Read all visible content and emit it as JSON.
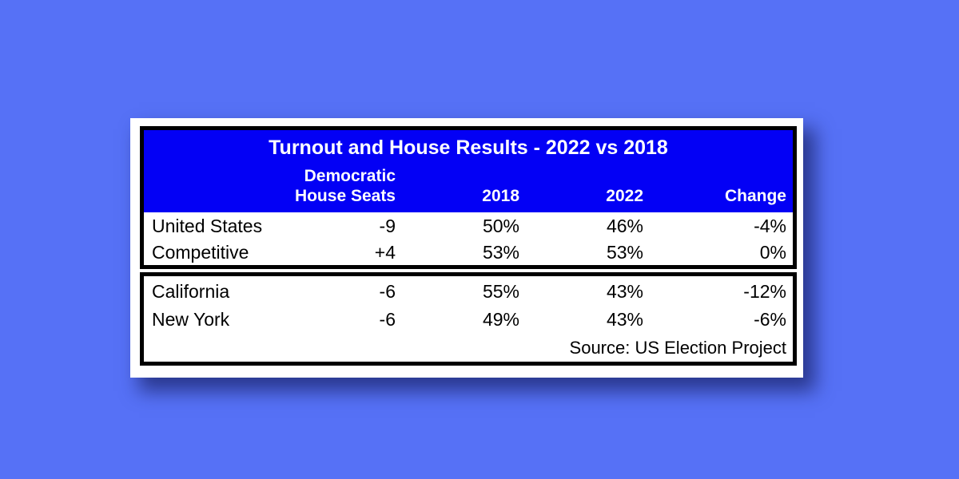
{
  "colors": {
    "page_bg": "#5671f6",
    "card_bg": "#ffffff",
    "header_bg": "#0300f5",
    "header_text": "#ffffff",
    "body_text": "#000000",
    "border_color": "#000000"
  },
  "table": {
    "title": "Turnout and House Results - 2022 vs 2018",
    "header": {
      "seats_line1": "Democratic",
      "seats_line2": "House Seats",
      "col_2018": "2018",
      "col_2022": "2022",
      "col_change": "Change"
    },
    "national_rows": [
      {
        "label": "United States",
        "seats": "-9",
        "y2018": "50%",
        "y2022": "46%",
        "change": "-4%"
      },
      {
        "label": "Competitive",
        "seats": "+4",
        "y2018": "53%",
        "y2022": "53%",
        "change": "0%"
      }
    ],
    "state_rows": [
      {
        "label": "California",
        "seats": "-6",
        "y2018": "55%",
        "y2022": "43%",
        "change": "-12%"
      },
      {
        "label": "New York",
        "seats": "-6",
        "y2018": "49%",
        "y2022": "43%",
        "change": "-6%"
      }
    ],
    "source": "Source: US Election Project"
  },
  "chart_data": {
    "type": "table",
    "title": "Turnout and House Results - 2022 vs 2018",
    "columns": [
      "",
      "Democratic House Seats",
      "2018",
      "2022",
      "Change"
    ],
    "rows": [
      [
        "United States",
        "-9",
        "50%",
        "46%",
        "-4%"
      ],
      [
        "Competitive",
        "+4",
        "53%",
        "53%",
        "0%"
      ],
      [
        "California",
        "-6",
        "55%",
        "43%",
        "-12%"
      ],
      [
        "New York",
        "-6",
        "49%",
        "43%",
        "-6%"
      ]
    ],
    "row_groups": [
      {
        "name": "national",
        "rows": [
          "United States",
          "Competitive"
        ]
      },
      {
        "name": "states",
        "rows": [
          "California",
          "New York"
        ]
      }
    ],
    "source": "Source: US Election Project",
    "layout": {
      "header_fill": "#0300f5",
      "header_text_color": "#ffffff",
      "numeric_alignment": "right"
    }
  }
}
